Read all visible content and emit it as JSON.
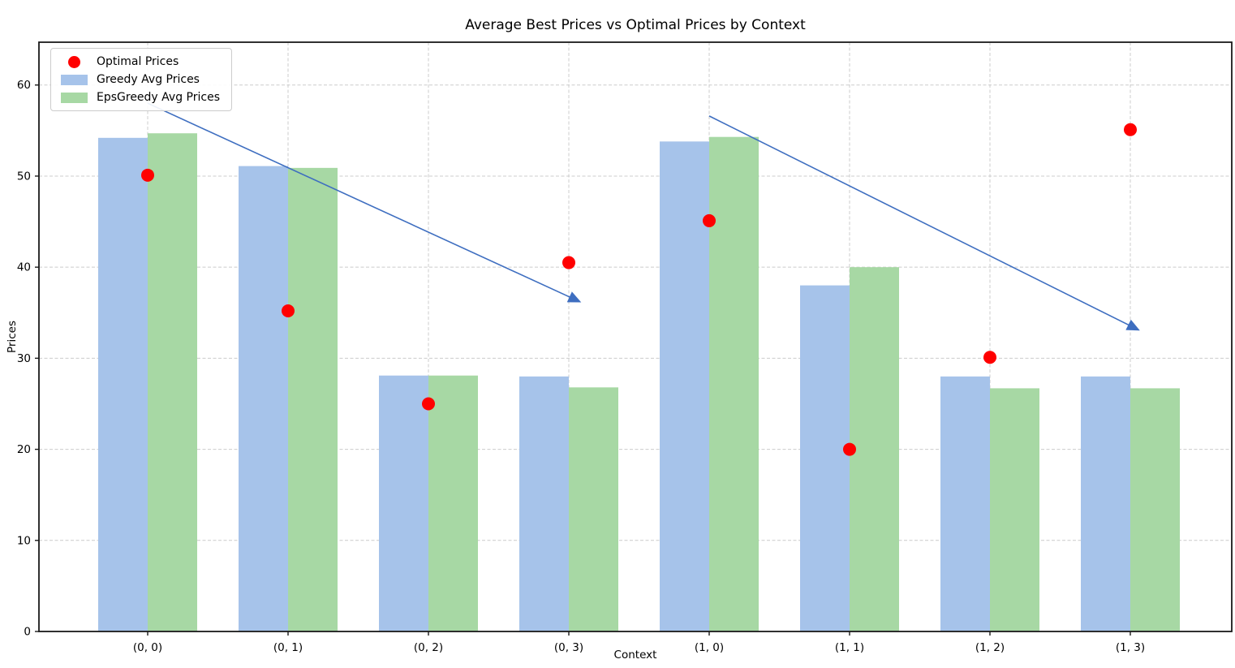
{
  "chart": {
    "title": "Average Best Prices vs Optimal Prices by Context",
    "xlabel": "Context",
    "ylabel": "Prices"
  },
  "legend": {
    "items": [
      {
        "label": "Optimal Prices",
        "marker": "dot"
      },
      {
        "label": "Greedy Avg Prices",
        "marker": "swatch"
      },
      {
        "label": "EpsGreedy Avg Prices",
        "marker": "swatch"
      }
    ]
  },
  "chart_data": {
    "type": "bar",
    "title": "Average Best Prices vs Optimal Prices by Context",
    "xlabel": "Context",
    "ylabel": "Prices",
    "categories": [
      "(0, 0)",
      "(0, 1)",
      "(0, 2)",
      "(0, 3)",
      "(1, 0)",
      "(1, 1)",
      "(1, 2)",
      "(1, 3)"
    ],
    "series": [
      {
        "name": "Greedy Avg Prices",
        "color": "#a6c3ea",
        "values": [
          54.2,
          51.1,
          28.1,
          28.0,
          53.8,
          38.0,
          28.0,
          28.0
        ]
      },
      {
        "name": "EpsGreedy Avg Prices",
        "color": "#a7d8a4",
        "values": [
          54.7,
          50.9,
          28.1,
          26.8,
          54.3,
          40.0,
          26.7,
          26.7
        ]
      }
    ],
    "points": {
      "name": "Optimal Prices",
      "color": "#ff0000",
      "values": [
        50.1,
        35.2,
        25.0,
        40.5,
        45.1,
        20.0,
        30.1,
        55.1
      ]
    },
    "yticks": [
      0,
      10,
      20,
      30,
      40,
      50,
      60
    ],
    "ylim": [
      0,
      64.7
    ],
    "grid": true,
    "grid_color": "#cccccc",
    "legend_position": "upper left",
    "annotations": [
      {
        "type": "arrow",
        "from": [
          0.0,
          58.0
        ],
        "to": [
          3.08,
          36.2
        ],
        "color": "#3e6ec0"
      },
      {
        "type": "arrow",
        "from": [
          4.0,
          56.6
        ],
        "to": [
          7.06,
          33.1
        ],
        "color": "#3e6ec0"
      }
    ]
  }
}
